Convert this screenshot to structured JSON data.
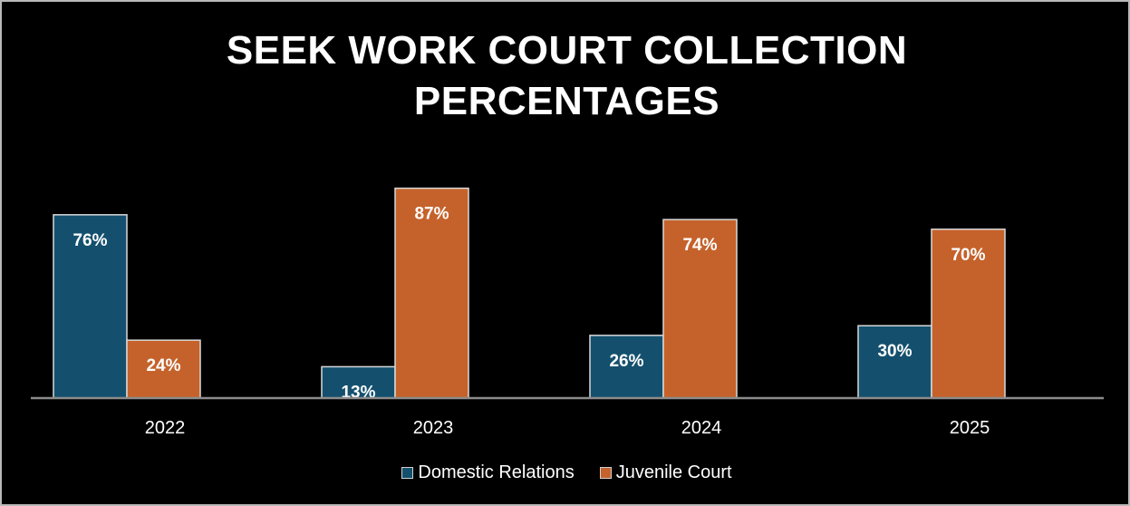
{
  "colors": {
    "background": "#000000",
    "domestic": "#14506e",
    "juvenile": "#c5622b",
    "bar_border": "#d9d9d9",
    "axis": "#8c8c8c",
    "text": "#ffffff"
  },
  "chart_data": {
    "type": "bar",
    "title_lines": [
      "SEEK WORK COURT COLLECTION",
      "PERCENTAGES"
    ],
    "xlabel": "",
    "ylabel": "",
    "categories": [
      "2022",
      "2023",
      "2024",
      "2025"
    ],
    "series": [
      {
        "name": "Domestic Relations",
        "values": [
          76,
          13,
          26,
          30
        ],
        "labels": [
          "76%",
          "13%",
          "26%",
          "30%"
        ],
        "color": "#14506e"
      },
      {
        "name": "Juvenile Court",
        "values": [
          24,
          87,
          74,
          70
        ],
        "labels": [
          "24%",
          "87%",
          "74%",
          "70%"
        ],
        "color": "#c5622b"
      }
    ],
    "ylim": [
      0,
      100
    ],
    "grid": false,
    "legend": "bottom"
  }
}
